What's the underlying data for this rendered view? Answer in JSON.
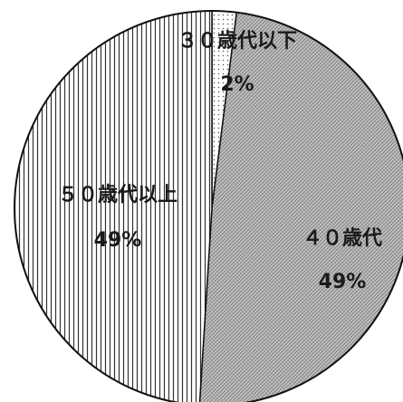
{
  "chart_data": {
    "type": "pie",
    "categories": [
      "３０歳代以下",
      "４０歳代",
      "５０歳代以上"
    ],
    "values": [
      2,
      49,
      49
    ],
    "value_labels": [
      "2%",
      "49%",
      "49%"
    ],
    "patterns": [
      "dots",
      "crosshatch",
      "vertical-lines"
    ],
    "start_angle_deg": 0,
    "direction": "clockwise"
  }
}
